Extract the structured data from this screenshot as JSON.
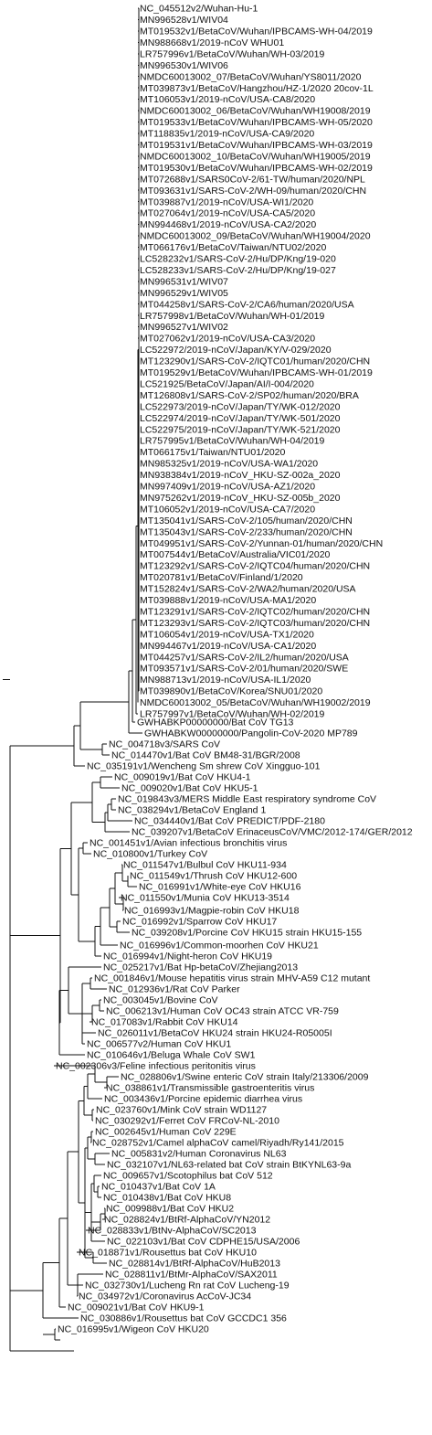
{
  "tree": {
    "labels": [
      "NC_045512v2/Wuhan-Hu-1",
      "MN996528v1/WIV04",
      "MT019532v1/BetaCoV/Wuhan/IPBCAMS-WH-04/2019",
      "MN988668v1/2019-nCoV WHU01",
      "LR757996v1/BetaCoV/Wuhan/WH-03/2019",
      "MN996530v1/WIV06",
      "NMDC60013002_07/BetaCoV/Wuhan/YS8011/2020",
      "MT039873v1/BetaCoV/Hangzhou/HZ-1/2020 20cov-1L",
      "MT106053v1/2019-nCoV/USA-CA8/2020",
      "NMDC60013002_06/BetaCoV/Wuhan/WH19008/2019",
      "MT019533v1/BetaCoV/Wuhan/IPBCAMS-WH-05/2020",
      "MT118835v1/2019-nCoV/USA-CA9/2020",
      "MT019531v1/BetaCoV/Wuhan/IPBCAMS-WH-03/2019",
      "NMDC60013002_10/BetaCoV/Wuhan/WH19005/2019",
      "MT019530v1/BetaCoV/Wuhan/IPBCAMS-WH-02/2019",
      "MT072688v1/SARS0CoV-2/61-TW/human/2020/NPL",
      "MT093631v1/SARS-CoV-2/WH-09/human/2020/CHN",
      "MT039887v1/2019-nCoV/USA-WI1/2020",
      "MT027064v1/2019-nCoV/USA-CA5/2020",
      "MN994468v1/2019-nCoV/USA-CA2/2020",
      "NMDC60013002_09/BetaCoV/Wuhan/WH19004/2020",
      "MT066176v1/BetaCoV/Taiwan/NTU02/2020",
      "LC528232v1/SARS-CoV-2/Hu/DP/Kng/19-020",
      "LC528233v1/SARS-CoV-2/Hu/DP/Kng/19-027",
      "MN996531v1/WIV07",
      "MN996529v1/WIV05",
      "MT044258v1/SARS-CoV-2/CA6/human/2020/USA",
      "LR757998v1/BetaCoV/Wuhan/WH-01/2019",
      "MN996527v1/WIV02",
      "MT027062v1/2019-nCoV/USA-CA3/2020",
      "LC522972/2019-nCoV/Japan/KY/V-029/2020",
      "MT123290v1/SARS-CoV-2/IQTC01/human/2020/CHN",
      "MT019529v1/BetaCoV/Wuhan/IPBCAMS-WH-01/2019",
      "LC521925/BetaCoV/Japan/AI/I-004/2020",
      "MT126808v1/SARS-CoV-2/SP02/human/2020/BRA",
      "LC522973/2019-nCoV/Japan/TY/WK-012/2020",
      "LC522974/2019-nCoV/Japan/TY/WK-501/2020",
      "LC522975/2019-nCoV/Japan/TY/WK-521/2020",
      "LR757995v1/BetaCoV/Wuhan/WH-04/2019",
      "MT066175v1/Taiwan/NTU01/2020",
      "MN985325v1/2019-nCoV/USA-WA1/2020",
      "MN938384v1/2019-nCoV_HKU-SZ-002a_2020",
      "MN997409v1/2019-nCoV/USA-AZ1/2020",
      "MN975262v1/2019-nCoV_HKU-SZ-005b_2020",
      "MT106052v1/2019-nCoV/USA-CA7/2020",
      "MT135041v1/SARS-CoV-2/105/human/2020/CHN",
      "MT135043v1/SARS-CoV-2/233/human/2020/CHN",
      "MT049951v1/SARS-CoV-2/Yunnan-01/human/2020/CHN",
      "MT007544v1/BetaCoV/Australia/VIC01/2020",
      "MT123292v1/SARS-CoV-2/IQTC04/human/2020/CHN",
      "MT020781v1/BetaCoV/Finland/1/2020",
      "MT152824v1/SARS-CoV-2/WA2/human/2020/USA",
      "MT039888v1/2019-nCoV/USA-MA1/2020",
      "MT123291v1/SARS-CoV-2/IQTC02/human/2020/CHN",
      "MT123293v1/SARS-CoV-2/IQTC03/human/2020/CHN",
      "MT106054v1/2019-nCoV/USA-TX1/2020",
      "MN994467v1/2019-nCoV/USA-CA1/2020",
      "MT044257v1/SARS-CoV-2/IL2/human/2020/USA",
      "MT093571v1/SARS-CoV-2/01/human/2020/SWE",
      "MN988713v1/2019-nCoV/USA-IL1/2020",
      "MT039890v1/BetaCoV/Korea/SNU01/2020",
      "NMDC60013002_05/BetaCoV/Wuhan/WH19002/2019",
      "LR757997v1/BetaCoV/Wuhan/WH-02/2019",
      "GWHABKP00000000/Bat CoV TG13",
      "GWHABKW00000000/Pangolin-CoV-2020 MP789",
      "NC_004718v3/SARS CoV",
      "NC_014470v1/Bat CoV BM48-31/BGR/2008",
      "NC_035191v1/Wencheng Sm shrew CoV Xingguo-101",
      "NC_009019v1/Bat CoV HKU4-1",
      "NC_009020v1/Bat CoV HKU5-1",
      "NC_019843v3/MERS Middle East respiratory syndrome CoV",
      "NC_038294v1/BetaCoV England 1",
      "NC_034440v1/Bat CoV PREDICT/PDF-2180",
      "NC_039207v1/BetaCoV ErinaceusCoV/VMC/2012-174/GER/2012",
      "NC_001451v1/Avian infectious bronchitis virus",
      "NC_010800v1/Turkey CoV",
      "NC_011547v1/Bulbul CoV HKU11-934",
      "NC_011549v1/Thrush CoV HKU12-600",
      "NC_016991v1/White-eye CoV HKU16",
      "NC_011550v1/Munia CoV HKU13-3514",
      "NC_016993v1/Magpie-robin CoV HKU18",
      "NC_016992v1/Sparrow CoV HKU17",
      "NC_039208v1/Porcine CoV HKU15 strain HKU15-155",
      "NC_016996v1/Common-moorhen CoV HKU21",
      "NC_016994v1/Night-heron CoV HKU19",
      "NC_025217v1/Bat Hp-betaCoV/Zhejiang2013",
      "NC_001846v1/Mouse hepatitis virus strain MHV-A59 C12 mutant",
      "NC_012936v1/Rat CoV Parker",
      "NC_003045v1/Bovine CoV",
      "NC_006213v1/Human CoV OC43 strain ATCC VR-759",
      "NC_017083v1/Rabbit CoV HKU14",
      "NC_026011v1/BetaCoV HKU24 strain HKU24-R05005I",
      "NC_006577v2/Human CoV HKU1",
      "NC_010646v1/Beluga Whale CoV SW1",
      "NC_002306v3/Feline infectious peritonitis virus",
      "NC_028806v1/Swine enteric CoV strain Italy/213306/2009",
      "NC_038861v1/Transmissible gastroenteritis virus",
      "NC_003436v1/Porcine epidemic diarrhea virus",
      "NC_023760v1/Mink CoV strain WD1127",
      "NC_030292v1/Ferret CoV FRCoV-NL-2010",
      "NC_002645v1/Human CoV 229E",
      "NC_028752v1/Camel alphaCoV camel/Riyadh/Ry141/2015",
      "NC_005831v2/Human Coronavirus NL63",
      "NC_032107v1/NL63-related bat CoV strain BtKYNL63-9a",
      "NC_009657v1/Scotophilus bat CoV 512",
      "NC_010437v1/Bat CoV 1A",
      "NC_010438v1/Bat CoV HKU8",
      "NC_009988v1/Bat CoV HKU2",
      "NC_028824v1/BtRf-AlphaCoV/YN2012",
      "NC_028833v1/BtNv-AlphaCoV/SC2013",
      "NC_022103v1/Bat CoV CDPHE15/USA/2006",
      "NC_018871v1/Rousettus bat CoV HKU10",
      "NC_028814v1/BtRf-AlphaCoV/HuB2013",
      "NC_028811v1/BtMr-AlphaCoV/SAX2011",
      "NC_032730v1/Lucheng Rn rat CoV Lucheng-19",
      "NC_034972v1/Coronavirus AcCoV-JC34",
      "NC_009021v1/Bat CoV HKU9-1",
      "NC_030886v1/Rousettus bat CoV GCCDC1 356",
      "NC_016995v1/Wigeon CoV HKU20"
    ]
  }
}
